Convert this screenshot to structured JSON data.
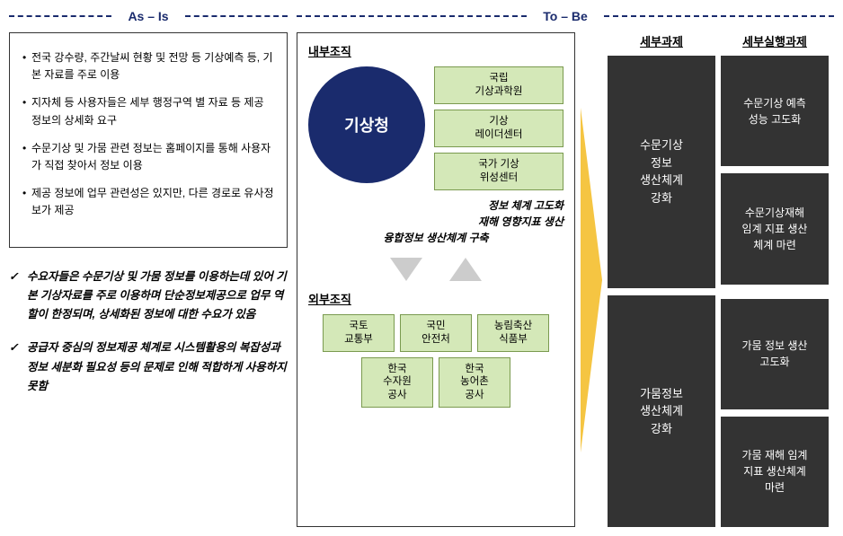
{
  "headers": {
    "asis": "As – Is",
    "tobe": "To – Be"
  },
  "asis": {
    "bullets": [
      "전국 강수량, 주간날씨 현황 및 전망 등 기상예측 등, 기본 자료를 주로 이용",
      "지자체 등 사용자들은 세부 행정구역 별 자료 등 제공 정보의 상세화 요구",
      "수문기상 및 가뭄 관련 정보는 홈페이지를 통해 사용자가 직접 찾아서 정보 이용",
      "제공 정보에 업무 관련성은 있지만, 다른 경로로 유사정보가 제공"
    ],
    "notes": [
      "수요자들은 수문기상 및 가뭄 정보를 이용하는데 있어 기본 기상자료를 주로 이용하며 단순정보제공으로 업무 역할이 한정되며, 상세화된 정보에 대한 수요가 있음",
      "공급자 중심의 정보제공 체계로 시스템활용의 복잡성과 정보 세분화 필요성 등의 문제로 인해 적합하게 사용하지 못함"
    ]
  },
  "tobe": {
    "internal_label": "내부조직",
    "circle": "기상청",
    "internal_boxes": [
      "국립\n기상과학원",
      "기상\n레이더센터",
      "국가 기상\n위성센터"
    ],
    "caption1": "정보 체계 고도화",
    "caption2": "재해 영향지표 생산",
    "mid_caption": "융합정보 생산체계 구축",
    "external_label": "외부조직",
    "external_boxes": [
      "국토\n교통부",
      "국민\n안전처",
      "농림축산\n식품부",
      "한국\n수자원\n공사",
      "한국\n농어촌\n공사"
    ],
    "task_header": "세부과제",
    "subtask_header": "세부실행과제",
    "tasks": [
      "수문기상\n정보\n생산체계\n강화",
      "가뭄정보\n생산체계\n강화"
    ],
    "subtasks": [
      "수문기상 예측\n성능 고도화",
      "수문기상재해\n임계 지표 생산\n체계 마련",
      "가뭄 정보 생산\n고도화",
      "가뭄 재해 임계\n지표 생산체계\n마련"
    ]
  },
  "colors": {
    "navy": "#1a2b6d",
    "green_fill": "#d4e8b8",
    "green_border": "#7a9a4f",
    "dark": "#333333",
    "arrow_gray": "#cccccc",
    "arrow_yellow": "#f5c542"
  }
}
